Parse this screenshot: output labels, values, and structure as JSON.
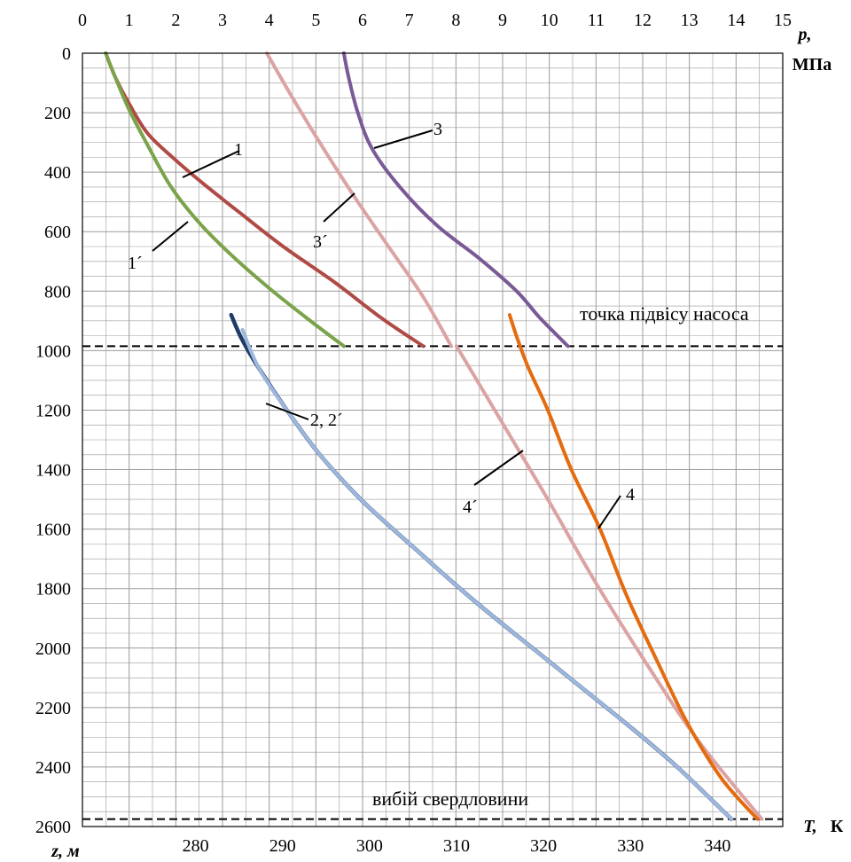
{
  "chart_data": {
    "type": "line",
    "top_axis": {
      "label_symbol": "p,",
      "label_unit": "МПа",
      "range": [
        0,
        15
      ],
      "ticks": [
        "0",
        "1",
        "2",
        "3",
        "4",
        "5",
        "6",
        "7",
        "8",
        "9",
        "10",
        "11",
        "12",
        "13",
        "14",
        "15"
      ]
    },
    "bottom_axis": {
      "label_symbol": "T,",
      "label_unit": "К",
      "range": [
        267,
        347.5
      ],
      "ticks": [
        "280",
        "290",
        "300",
        "310",
        "320",
        "330",
        "340"
      ]
    },
    "left_axis": {
      "label": "z, м",
      "range": [
        0,
        2600
      ],
      "inverted": true,
      "ticks": [
        "0",
        "200",
        "400",
        "600",
        "800",
        "1000",
        "1200",
        "1400",
        "1600",
        "1800",
        "2000",
        "2200",
        "2400",
        "2600"
      ]
    },
    "grid": true,
    "reference_lines": [
      {
        "name": "pump",
        "label": "точка підвісу насоса",
        "z": 985
      },
      {
        "name": "bottom",
        "label": "вибій свердловини",
        "z": 2575
      }
    ],
    "curve_labels": [
      {
        "text": "1",
        "series": "1"
      },
      {
        "text": "1´",
        "series": "1´"
      },
      {
        "text": "2, 2´",
        "series": "2, 2´"
      },
      {
        "text": "3",
        "series": "3"
      },
      {
        "text": "3´",
        "series": "3´"
      },
      {
        "text": "4",
        "series": "4"
      },
      {
        "text": "4´",
        "series": "4´"
      }
    ],
    "series": [
      {
        "name": "1",
        "axis": "p",
        "color": "#b04a45",
        "points": [
          [
            0.5,
            0
          ],
          [
            0.7,
            80
          ],
          [
            1.0,
            170
          ],
          [
            1.4,
            270
          ],
          [
            2.0,
            360
          ],
          [
            2.6,
            440
          ],
          [
            3.4,
            540
          ],
          [
            4.3,
            650
          ],
          [
            5.4,
            770
          ],
          [
            6.4,
            890
          ],
          [
            7.3,
            985
          ]
        ]
      },
      {
        "name": "1´",
        "axis": "p",
        "color": "#7aa34a",
        "points": [
          [
            0.5,
            0
          ],
          [
            0.7,
            80
          ],
          [
            1.0,
            190
          ],
          [
            1.4,
            310
          ],
          [
            1.9,
            450
          ],
          [
            2.5,
            570
          ],
          [
            3.2,
            680
          ],
          [
            4.0,
            790
          ],
          [
            4.8,
            890
          ],
          [
            5.6,
            985
          ]
        ]
      },
      {
        "name": "2",
        "axis": "T",
        "color": "#1f3b66",
        "points": [
          [
            284.1,
            880
          ],
          [
            285.3,
            960
          ],
          [
            287.3,
            1060
          ],
          [
            290.5,
            1200
          ],
          [
            294.3,
            1350
          ],
          [
            299.0,
            1500
          ],
          [
            305.0,
            1660
          ],
          [
            312.0,
            1840
          ],
          [
            320.0,
            2030
          ],
          [
            328.5,
            2230
          ],
          [
            335.0,
            2390
          ],
          [
            341.6,
            2575
          ]
        ]
      },
      {
        "name": "2´",
        "axis": "T",
        "color": "#9db6dc",
        "points": [
          [
            285.4,
            930
          ],
          [
            287.3,
            1060
          ],
          [
            290.5,
            1200
          ],
          [
            294.3,
            1350
          ],
          [
            299.0,
            1500
          ],
          [
            305.0,
            1660
          ],
          [
            312.0,
            1840
          ],
          [
            320.0,
            2030
          ],
          [
            328.5,
            2230
          ],
          [
            335.0,
            2390
          ],
          [
            341.6,
            2575
          ]
        ]
      },
      {
        "name": "3",
        "axis": "p",
        "color": "#7a5a96",
        "points": [
          [
            5.6,
            0
          ],
          [
            5.7,
            80
          ],
          [
            5.9,
            200
          ],
          [
            6.2,
            320
          ],
          [
            6.8,
            450
          ],
          [
            7.6,
            580
          ],
          [
            8.5,
            690
          ],
          [
            9.3,
            800
          ],
          [
            9.8,
            890
          ],
          [
            10.4,
            985
          ]
        ]
      },
      {
        "name": "3´",
        "axis": "p",
        "color": "#dba3a3",
        "points": [
          [
            3.95,
            0
          ],
          [
            4.5,
            150
          ],
          [
            5.2,
            330
          ],
          [
            5.9,
            500
          ],
          [
            6.6,
            660
          ],
          [
            7.3,
            820
          ],
          [
            7.9,
            985
          ]
        ]
      },
      {
        "name": "4´",
        "axis": "T",
        "color": "#dba3a3",
        "points": [
          [
            310.0,
            985
          ],
          [
            315.0,
            1230
          ],
          [
            320.5,
            1500
          ],
          [
            326.0,
            1780
          ],
          [
            332.0,
            2060
          ],
          [
            338.0,
            2320
          ],
          [
            345.1,
            2575
          ]
        ]
      },
      {
        "name": "4",
        "axis": "T",
        "color": "#e46b0f",
        "points": [
          [
            316.1,
            880
          ],
          [
            317.0,
            960
          ],
          [
            318.3,
            1060
          ],
          [
            320.5,
            1200
          ],
          [
            323.2,
            1400
          ],
          [
            326.5,
            1600
          ],
          [
            329.5,
            1820
          ],
          [
            333.0,
            2040
          ],
          [
            336.5,
            2250
          ],
          [
            340.5,
            2440
          ],
          [
            344.6,
            2575
          ]
        ]
      }
    ]
  }
}
